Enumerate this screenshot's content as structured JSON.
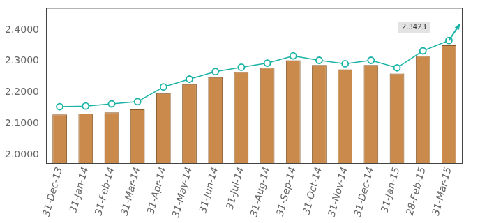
{
  "chart_data": {
    "type": "bar",
    "categories": [
      "31-Dec-13",
      "31-Jan-14",
      "31-Feb-14",
      "31-Mar-14",
      "31-Apr-14",
      "31-May-14",
      "31-Jun-14",
      "31-Jul-14",
      "31-Aug-14",
      "31-Sep-14",
      "31-Oct-14",
      "31-Nov-14",
      "31-Dec-14",
      "31-Jan-15",
      "28-Feb-15",
      "31-Mar-15"
    ],
    "series": [
      {
        "type": "bar",
        "color": "#c98a4b",
        "values": [
          2.13,
          2.133,
          2.137,
          2.146,
          2.198,
          2.227,
          2.249,
          2.265,
          2.279,
          2.303,
          2.288,
          2.274,
          2.288,
          2.261,
          2.317,
          2.351
        ]
      },
      {
        "type": "line",
        "color": "#1ab3a6",
        "marker": "circle",
        "line_style": "solid",
        "values": [
          2.155,
          2.157,
          2.164,
          2.171,
          2.218,
          2.243,
          2.267,
          2.281,
          2.294,
          2.317,
          2.303,
          2.292,
          2.303,
          2.279,
          2.333,
          2.366
        ]
      }
    ],
    "annotations": [
      "2.3423"
    ],
    "ylim": [
      1.975,
      2.47
    ],
    "yticks": [
      {
        "value": 2.0,
        "label": "2.0000"
      },
      {
        "value": 2.1,
        "label": "2.1000"
      },
      {
        "value": 2.2,
        "label": "2.2000"
      },
      {
        "value": 2.3,
        "label": "2.3000"
      },
      {
        "value": 2.4,
        "label": "2.4000"
      }
    ],
    "grid": false
  }
}
